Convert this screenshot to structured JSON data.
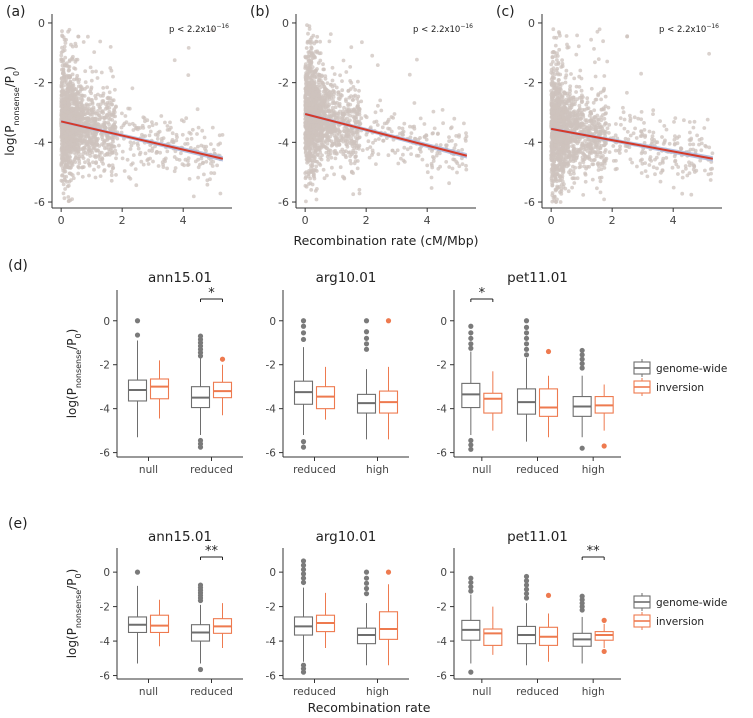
{
  "colors": {
    "point": "#cdc3bd",
    "fit_line": "#d43a2a",
    "ci_band": "#a9b7dc",
    "genome_wide": "#6e6e6e",
    "inversion": "#ee7a4f",
    "outlier_gw": "#7a7a7a",
    "outlier_inv": "#ee7a4f",
    "axis": "#333333"
  },
  "labels": {
    "scatter_ylabel_main": "log(P",
    "scatter_ylabel_sub1": "nonsense",
    "scatter_ylabel_mid": "/P",
    "scatter_ylabel_sub2": "0",
    "scatter_ylabel_end": ")",
    "scatter_xlabel": "Recombination rate (cM/Mbp)",
    "box_xlabel": "Recombination rate",
    "pvalue_base": "p < 2.2x10",
    "pvalue_exp": "−16",
    "panel_d": "(d)",
    "panel_e": "(e)"
  },
  "legend": {
    "items": [
      {
        "label": "genome-wide",
        "key": "genome_wide"
      },
      {
        "label": "inversion",
        "key": "inversion"
      }
    ]
  },
  "chart_data": [
    {
      "type": "scatter",
      "panel": "(a)",
      "xlim": [
        -0.3,
        5.6
      ],
      "ylim": [
        -6.2,
        0.3
      ],
      "xticks": [
        "0",
        "2",
        "4"
      ],
      "yticks": [
        "0",
        "-2",
        "-4",
        "-6"
      ],
      "x_ticks_values": [
        0,
        2,
        4
      ],
      "y_ticks_values": [
        0,
        -2,
        -4,
        -6
      ],
      "pvalue": "p < 2.2x10−16",
      "fit": {
        "x": [
          0,
          5.3
        ],
        "y": [
          -3.3,
          -4.55
        ]
      },
      "seed": 11,
      "n": 1600
    },
    {
      "type": "scatter",
      "panel": "(b)",
      "xlim": [
        -0.3,
        5.6
      ],
      "ylim": [
        -6.2,
        0.3
      ],
      "xticks": [
        "0",
        "2",
        "4"
      ],
      "yticks": [
        "0",
        "-2",
        "-4",
        "-6"
      ],
      "x_ticks_values": [
        0,
        2,
        4
      ],
      "y_ticks_values": [
        0,
        -2,
        -4,
        -6
      ],
      "pvalue": "p < 2.2x10−16",
      "fit": {
        "x": [
          0,
          5.3
        ],
        "y": [
          -3.05,
          -4.45
        ]
      },
      "seed": 23,
      "n": 1600
    },
    {
      "type": "scatter",
      "panel": "(c)",
      "xlim": [
        -0.3,
        5.6
      ],
      "ylim": [
        -6.2,
        0.3
      ],
      "xticks": [
        "0",
        "2",
        "4"
      ],
      "yticks": [
        "0",
        "-2",
        "-4",
        "-6"
      ],
      "x_ticks_values": [
        0,
        2,
        4
      ],
      "y_ticks_values": [
        0,
        -2,
        -4,
        -6
      ],
      "pvalue": "p < 2.2x10−16",
      "fit": {
        "x": [
          0,
          5.3
        ],
        "y": [
          -3.55,
          -4.55
        ]
      },
      "seed": 37,
      "n": 1600
    },
    {
      "type": "boxplot",
      "row": "(d)",
      "ylim": [
        -6.2,
        1.4
      ],
      "yticks": [
        "0",
        "-2",
        "-4",
        "-6"
      ],
      "y_ticks_values": [
        0,
        -2,
        -4,
        -6
      ],
      "facets": [
        {
          "title": "ann15.01",
          "groups": [
            {
              "label": "null",
              "boxes": [
                {
                  "series": "genome-wide",
                  "q1": -3.65,
                  "median": -3.15,
                  "q3": -2.7,
                  "lo": -5.3,
                  "hi": -0.9,
                  "outliers": [
                    0.0,
                    -0.65
                  ]
                },
                {
                  "series": "inversion",
                  "q1": -3.55,
                  "median": -3.0,
                  "q3": -2.65,
                  "lo": -4.45,
                  "hi": -1.8,
                  "outliers": []
                }
              ]
            },
            {
              "label": "reduced",
              "boxes": [
                {
                  "series": "genome-wide",
                  "q1": -3.95,
                  "median": -3.5,
                  "q3": -3.0,
                  "lo": -5.2,
                  "hi": -1.7,
                  "outliers": [
                    -0.7,
                    -0.85,
                    -1.0,
                    -1.15,
                    -1.3,
                    -1.45,
                    -1.6,
                    -5.45,
                    -5.6,
                    -5.75
                  ]
                },
                {
                  "series": "inversion",
                  "q1": -3.5,
                  "median": -3.2,
                  "q3": -2.8,
                  "lo": -4.3,
                  "hi": -2.0,
                  "outliers": [
                    -1.75
                  ]
                }
              ]
            }
          ],
          "significance": [
            {
              "group_index": 1,
              "label": "*"
            }
          ]
        },
        {
          "title": "arg10.01",
          "groups": [
            {
              "label": "reduced",
              "boxes": [
                {
                  "series": "genome-wide",
                  "q1": -3.8,
                  "median": -3.25,
                  "q3": -2.75,
                  "lo": -5.2,
                  "hi": -1.2,
                  "outliers": [
                    0.0,
                    -0.25,
                    -0.55,
                    -0.85,
                    -5.5,
                    -5.75
                  ]
                },
                {
                  "series": "inversion",
                  "q1": -4.0,
                  "median": -3.45,
                  "q3": -3.0,
                  "lo": -4.5,
                  "hi": -2.1,
                  "outliers": []
                }
              ]
            },
            {
              "label": "high",
              "boxes": [
                {
                  "series": "genome-wide",
                  "q1": -4.2,
                  "median": -3.75,
                  "q3": -3.35,
                  "lo": -5.4,
                  "hi": -2.2,
                  "outliers": [
                    0.0,
                    -0.5,
                    -0.8,
                    -1.05,
                    -1.3
                  ]
                },
                {
                  "series": "inversion",
                  "q1": -4.2,
                  "median": -3.7,
                  "q3": -3.2,
                  "lo": -5.4,
                  "hi": -2.1,
                  "outliers": [
                    0.0
                  ]
                }
              ]
            }
          ],
          "significance": []
        },
        {
          "title": "pet11.01",
          "groups": [
            {
              "label": "null",
              "boxes": [
                {
                  "series": "genome-wide",
                  "q1": -3.95,
                  "median": -3.35,
                  "q3": -2.85,
                  "lo": -5.2,
                  "hi": -1.4,
                  "outliers": [
                    -0.25,
                    -0.55,
                    -0.8,
                    -1.05,
                    -1.25,
                    -5.45,
                    -5.65,
                    -5.85
                  ]
                },
                {
                  "series": "inversion",
                  "q1": -4.2,
                  "median": -3.55,
                  "q3": -3.3,
                  "lo": -5.0,
                  "hi": -2.3,
                  "outliers": []
                }
              ]
            },
            {
              "label": "reduced",
              "boxes": [
                {
                  "series": "genome-wide",
                  "q1": -4.25,
                  "median": -3.7,
                  "q3": -3.1,
                  "lo": -5.5,
                  "hi": -1.7,
                  "outliers": [
                    0.0,
                    -0.3,
                    -0.55,
                    -0.8,
                    -1.05,
                    -1.3,
                    -1.55
                  ]
                },
                {
                  "series": "inversion",
                  "q1": -4.35,
                  "median": -3.95,
                  "q3": -3.1,
                  "lo": -5.3,
                  "hi": -2.5,
                  "outliers": [
                    -1.4
                  ]
                }
              ]
            },
            {
              "label": "high",
              "boxes": [
                {
                  "series": "genome-wide",
                  "q1": -4.35,
                  "median": -3.9,
                  "q3": -3.45,
                  "lo": -5.3,
                  "hi": -2.5,
                  "outliers": [
                    -1.35,
                    -1.55,
                    -1.75,
                    -1.95,
                    -2.15,
                    -5.8
                  ]
                },
                {
                  "series": "inversion",
                  "q1": -4.2,
                  "median": -3.85,
                  "q3": -3.45,
                  "lo": -5.0,
                  "hi": -2.9,
                  "outliers": [
                    -5.7
                  ]
                }
              ]
            }
          ],
          "significance": [
            {
              "group_index": 0,
              "label": "*"
            }
          ]
        }
      ]
    },
    {
      "type": "boxplot",
      "row": "(e)",
      "ylim": [
        -6.2,
        1.4
      ],
      "yticks": [
        "0",
        "-2",
        "-4",
        "-6"
      ],
      "y_ticks_values": [
        0,
        -2,
        -4,
        -6
      ],
      "facets": [
        {
          "title": "ann15.01",
          "groups": [
            {
              "label": "null",
              "boxes": [
                {
                  "series": "genome-wide",
                  "q1": -3.5,
                  "median": -3.05,
                  "q3": -2.6,
                  "lo": -5.3,
                  "hi": -0.8,
                  "outliers": [
                    0.0
                  ]
                },
                {
                  "series": "inversion",
                  "q1": -3.5,
                  "median": -3.1,
                  "q3": -2.5,
                  "lo": -4.3,
                  "hi": -1.6,
                  "outliers": []
                }
              ]
            },
            {
              "label": "reduced",
              "boxes": [
                {
                  "series": "genome-wide",
                  "q1": -4.0,
                  "median": -3.5,
                  "q3": -3.05,
                  "lo": -5.3,
                  "hi": -1.9,
                  "outliers": [
                    -0.75,
                    -0.9,
                    -1.05,
                    -1.2,
                    -1.35,
                    -1.5,
                    -1.65,
                    -5.65
                  ]
                },
                {
                  "series": "inversion",
                  "q1": -3.55,
                  "median": -3.15,
                  "q3": -2.7,
                  "lo": -4.4,
                  "hi": -1.8,
                  "outliers": []
                }
              ]
            }
          ],
          "significance": [
            {
              "group_index": 1,
              "label": "**"
            }
          ]
        },
        {
          "title": "arg10.01",
          "groups": [
            {
              "label": "reduced",
              "boxes": [
                {
                  "series": "genome-wide",
                  "q1": -3.65,
                  "median": -3.15,
                  "q3": -2.6,
                  "lo": -5.2,
                  "hi": -0.9,
                  "outliers": [
                    0.65,
                    0.4,
                    0.15,
                    -0.1,
                    -0.35,
                    -0.6,
                    -5.4,
                    -5.6,
                    -5.8
                  ]
                },
                {
                  "series": "inversion",
                  "q1": -3.45,
                  "median": -2.95,
                  "q3": -2.5,
                  "lo": -4.4,
                  "hi": -1.2,
                  "outliers": []
                }
              ]
            },
            {
              "label": "high",
              "boxes": [
                {
                  "series": "genome-wide",
                  "q1": -4.15,
                  "median": -3.65,
                  "q3": -3.25,
                  "lo": -5.4,
                  "hi": -1.8,
                  "outliers": [
                    0.0,
                    -0.35,
                    -0.65,
                    -0.95,
                    -1.25
                  ]
                },
                {
                  "series": "inversion",
                  "q1": -3.9,
                  "median": -3.3,
                  "q3": -2.3,
                  "lo": -5.4,
                  "hi": -0.7,
                  "outliers": [
                    0.0
                  ]
                }
              ]
            }
          ],
          "significance": []
        },
        {
          "title": "pet11.01",
          "groups": [
            {
              "label": "null",
              "boxes": [
                {
                  "series": "genome-wide",
                  "q1": -3.95,
                  "median": -3.35,
                  "q3": -2.8,
                  "lo": -5.3,
                  "hi": -1.3,
                  "outliers": [
                    -0.35,
                    -0.6,
                    -0.85,
                    -1.1,
                    -5.8
                  ]
                },
                {
                  "series": "inversion",
                  "q1": -4.25,
                  "median": -3.55,
                  "q3": -3.3,
                  "lo": -4.8,
                  "hi": -2.0,
                  "outliers": []
                }
              ]
            },
            {
              "label": "reduced",
              "boxes": [
                {
                  "series": "genome-wide",
                  "q1": -4.15,
                  "median": -3.65,
                  "q3": -3.15,
                  "lo": -5.4,
                  "hi": -1.8,
                  "outliers": [
                    -0.25,
                    -0.5,
                    -0.75,
                    -1.0,
                    -1.25,
                    -1.5
                  ]
                },
                {
                  "series": "inversion",
                  "q1": -4.25,
                  "median": -3.75,
                  "q3": -3.2,
                  "lo": -5.2,
                  "hi": -2.4,
                  "outliers": [
                    -1.35
                  ]
                }
              ]
            },
            {
              "label": "high",
              "boxes": [
                {
                  "series": "genome-wide",
                  "q1": -4.3,
                  "median": -3.9,
                  "q3": -3.55,
                  "lo": -5.3,
                  "hi": -2.6,
                  "outliers": [
                    -1.4,
                    -1.6,
                    -1.8,
                    -2.0,
                    -2.2
                  ]
                },
                {
                  "series": "inversion",
                  "q1": -3.95,
                  "median": -3.65,
                  "q3": -3.45,
                  "lo": -4.4,
                  "hi": -3.0,
                  "outliers": [
                    -2.8,
                    -4.6
                  ]
                }
              ]
            }
          ],
          "significance": [
            {
              "group_index": 2,
              "label": "**"
            }
          ]
        }
      ]
    }
  ]
}
